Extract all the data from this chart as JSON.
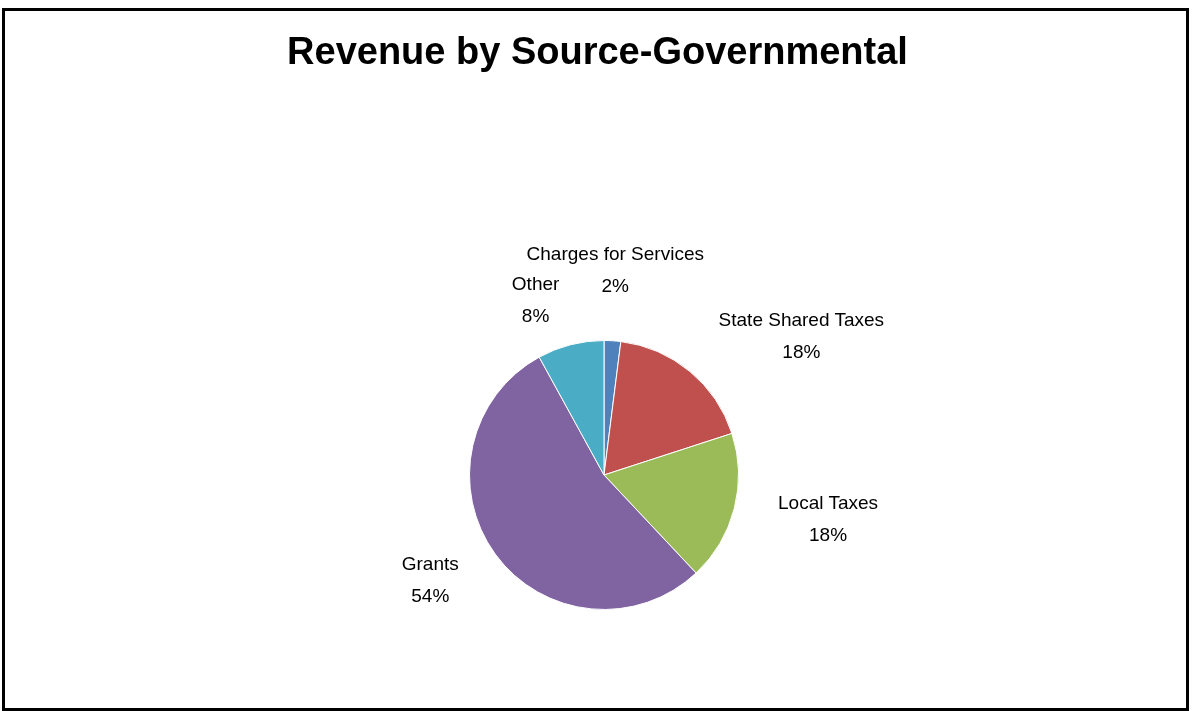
{
  "chart_data": {
    "type": "pie",
    "title": "Revenue by Source-Governmental",
    "categories": [
      "Charges for Services",
      "State Shared Taxes",
      "Local Taxes",
      "Grants",
      "Other"
    ],
    "values": [
      2,
      18,
      18,
      54,
      8
    ],
    "colors": [
      "#4f81bd",
      "#c0504d",
      "#9bbb59",
      "#8064a2",
      "#4bacc6"
    ],
    "value_labels": [
      "2%",
      "18%",
      "18%",
      "54%",
      "8%"
    ],
    "legend": false
  }
}
